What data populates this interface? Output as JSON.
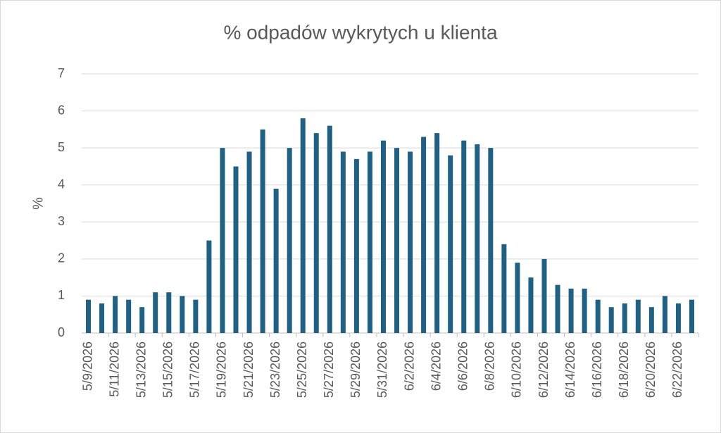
{
  "chart_data": {
    "type": "bar",
    "title": "% odpadów wykrytych u klienta",
    "y_label": "%",
    "categories": [
      "5/9/2026",
      null,
      "5/11/2026",
      null,
      "5/13/2026",
      null,
      "5/15/2026",
      null,
      "5/17/2026",
      null,
      "5/19/2026",
      null,
      "5/21/2026",
      null,
      "5/23/2026",
      null,
      "5/25/2026",
      null,
      "5/27/2026",
      null,
      "5/29/2026",
      null,
      "5/31/2026",
      null,
      "6/2/2026",
      null,
      "6/4/2026",
      null,
      "6/6/2026",
      null,
      "6/8/2026",
      null,
      "6/10/2026",
      null,
      "6/12/2026",
      null,
      "6/14/2026",
      null,
      "6/16/2026",
      null,
      "6/18/2026",
      null,
      "6/20/2026",
      null,
      "6/22/2026",
      null
    ],
    "values": [
      0.9,
      0.8,
      1.0,
      0.9,
      0.7,
      1.1,
      1.1,
      1.0,
      0.9,
      2.5,
      5.0,
      4.5,
      4.9,
      5.5,
      3.9,
      5.0,
      5.8,
      5.4,
      5.6,
      4.9,
      4.7,
      4.9,
      5.2,
      5.0,
      4.9,
      5.3,
      5.4,
      4.8,
      5.2,
      5.1,
      5.0,
      2.4,
      1.9,
      1.5,
      2.0,
      1.3,
      1.2,
      1.2,
      0.9,
      0.7,
      0.8,
      0.9,
      0.7,
      1.0,
      0.8,
      0.9
    ],
    "color": "#1f6085",
    "ylim": [
      0,
      7
    ],
    "yticks": [
      0,
      1,
      2,
      3,
      4,
      5,
      6,
      7
    ],
    "grid": true
  }
}
